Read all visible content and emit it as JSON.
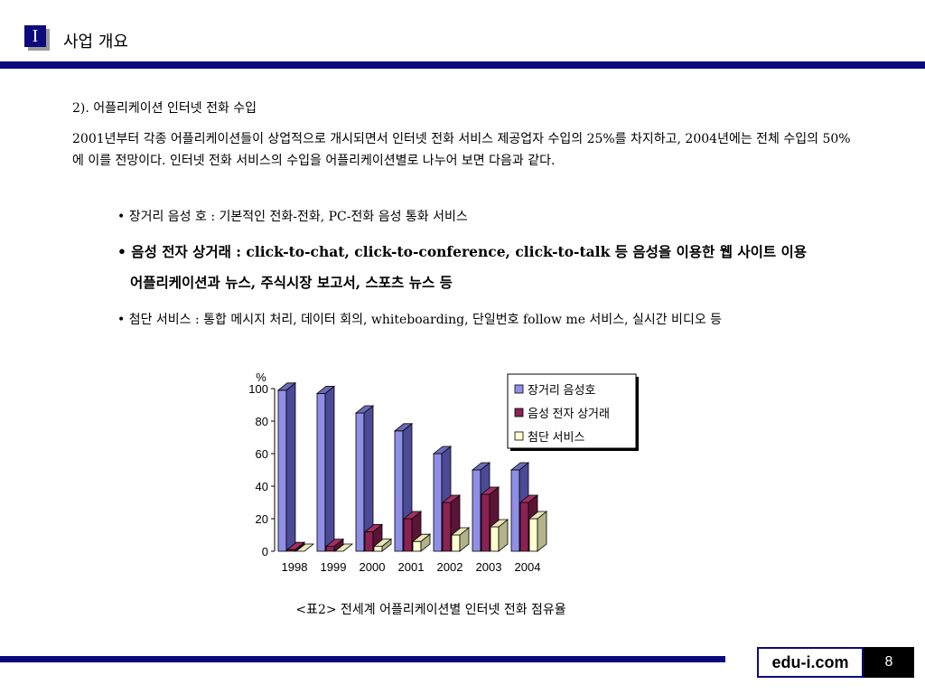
{
  "header": {
    "badge": "I",
    "title": "사업 개요"
  },
  "section": {
    "heading": "2). 어플리케이션 인터넷 전화 수입",
    "body": "2001년부터 각종 어플리케이션들이 상업적으로 개시되면서 인터넷 전화 서비스 제공업자 수입의 25%를 차지하고, 2004년에는 전체 수입의 50%에 이를 전망이다. 인터넷 전화 서비스의 수입을 어플리케이션별로 나누어 보면 다음과 같다.",
    "bullets": [
      {
        "text": "• 장거리 음성 호 : 기본적인 전화-전화, PC-전화 음성 통화 서비스"
      },
      {
        "line1": "• 음성 전자 상거래 : click-to-chat, click-to-conference, click-to-talk 등 음성을 이용한 웹 사이트 이용",
        "line2": "어플리케이션과 뉴스, 주식시장 보고서, 스포츠 뉴스 등"
      },
      {
        "text": "• 첨단 서비스 : 통합 메시지 처리, 데이터 회의, whiteboarding, 단일번호 follow me 서비스, 실시간 비디오 등"
      }
    ]
  },
  "chart_data": {
    "type": "bar",
    "ylabel": "%",
    "ylim": [
      0,
      100
    ],
    "yticks": [
      "0",
      "20",
      "40",
      "60",
      "80",
      "100"
    ],
    "categories": [
      "1998",
      "1999",
      "2000",
      "2001",
      "2002",
      "2003",
      "2004"
    ],
    "series": [
      {
        "name": "장거리 음성호",
        "values": [
          99,
          97,
          85,
          74,
          60,
          50,
          50
        ],
        "color": "#8f8fe8"
      },
      {
        "name": "음성 전자 상거래",
        "values": [
          1,
          3,
          12,
          20,
          30,
          35,
          30
        ],
        "color": "#8b2252"
      },
      {
        "name": "첨단 서비스",
        "values": [
          0,
          0,
          3,
          6,
          10,
          15,
          20
        ],
        "color": "#ffffd0"
      }
    ],
    "legend_position": "top-right",
    "grid": false,
    "caption": "<표2> 전세계 어플리케이션별 인터넷 전화 점유율"
  },
  "footer": {
    "brand": "edu-i.com",
    "page": "8"
  }
}
